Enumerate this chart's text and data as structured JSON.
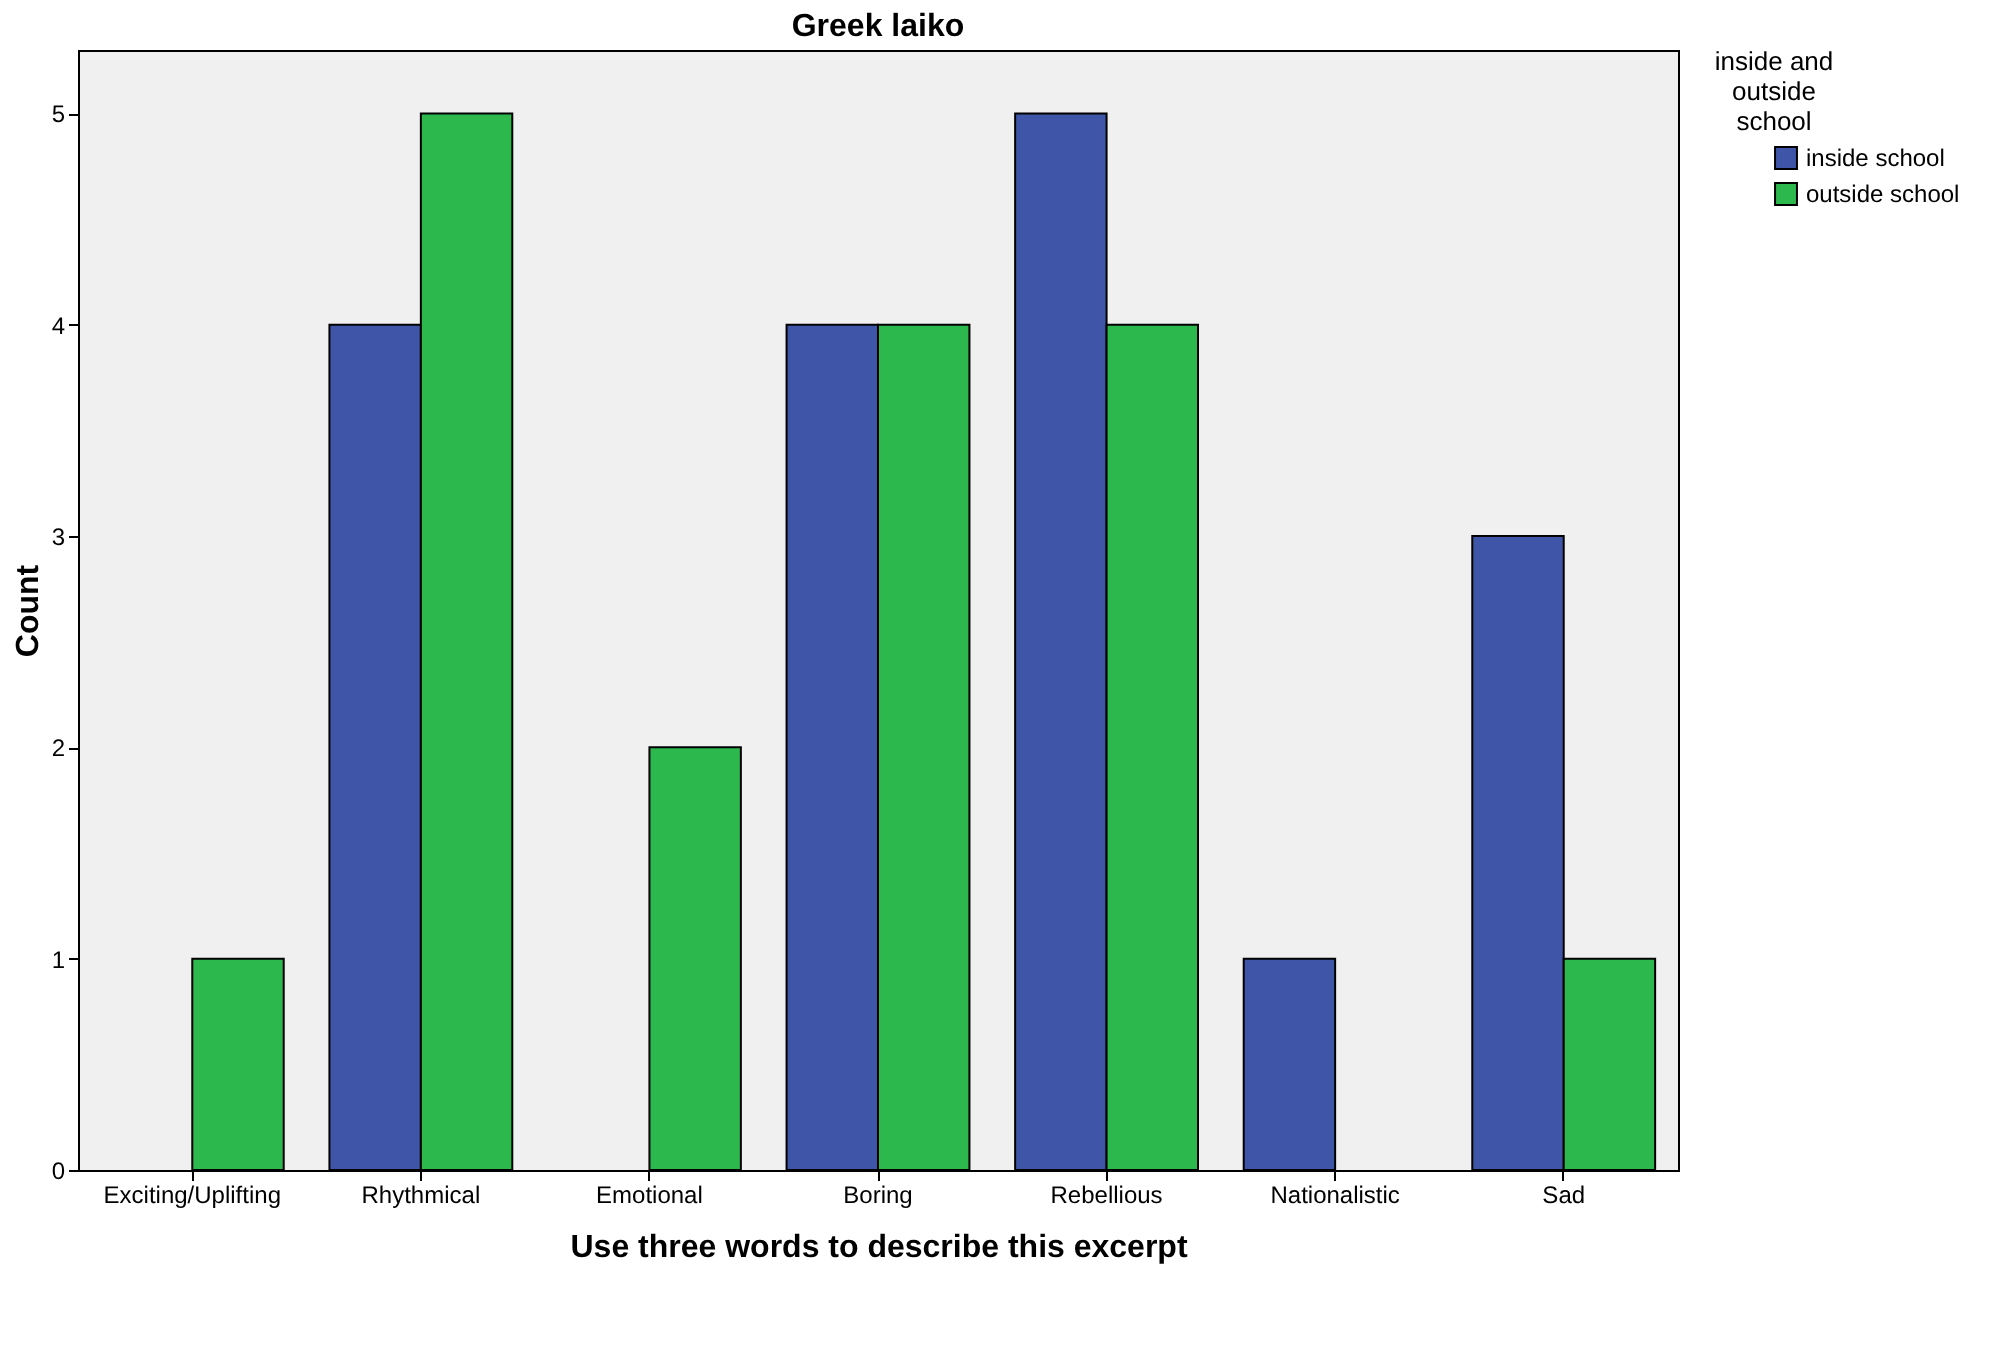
{
  "chart_data": {
    "type": "bar",
    "title": "Greek laiko",
    "xlabel": "Use three words to describe this excerpt",
    "ylabel": "Count",
    "legend_title": "inside and outside school",
    "categories": [
      "Exciting/Uplifting",
      "Rhythmical",
      "Emotional",
      "Boring",
      "Rebellious",
      "Nationalistic",
      "Sad"
    ],
    "series": [
      {
        "name": "inside school",
        "color": "#3f56a8",
        "values": [
          null,
          4,
          null,
          4,
          5,
          1,
          3
        ]
      },
      {
        "name": "outside school",
        "color": "#2db84d",
        "values": [
          1,
          5,
          2,
          4,
          4,
          null,
          1
        ]
      }
    ],
    "ylim": [
      0,
      5.3
    ],
    "yticks": [
      0,
      1,
      2,
      3,
      4,
      5
    ],
    "grid": false,
    "legend": "top right"
  }
}
